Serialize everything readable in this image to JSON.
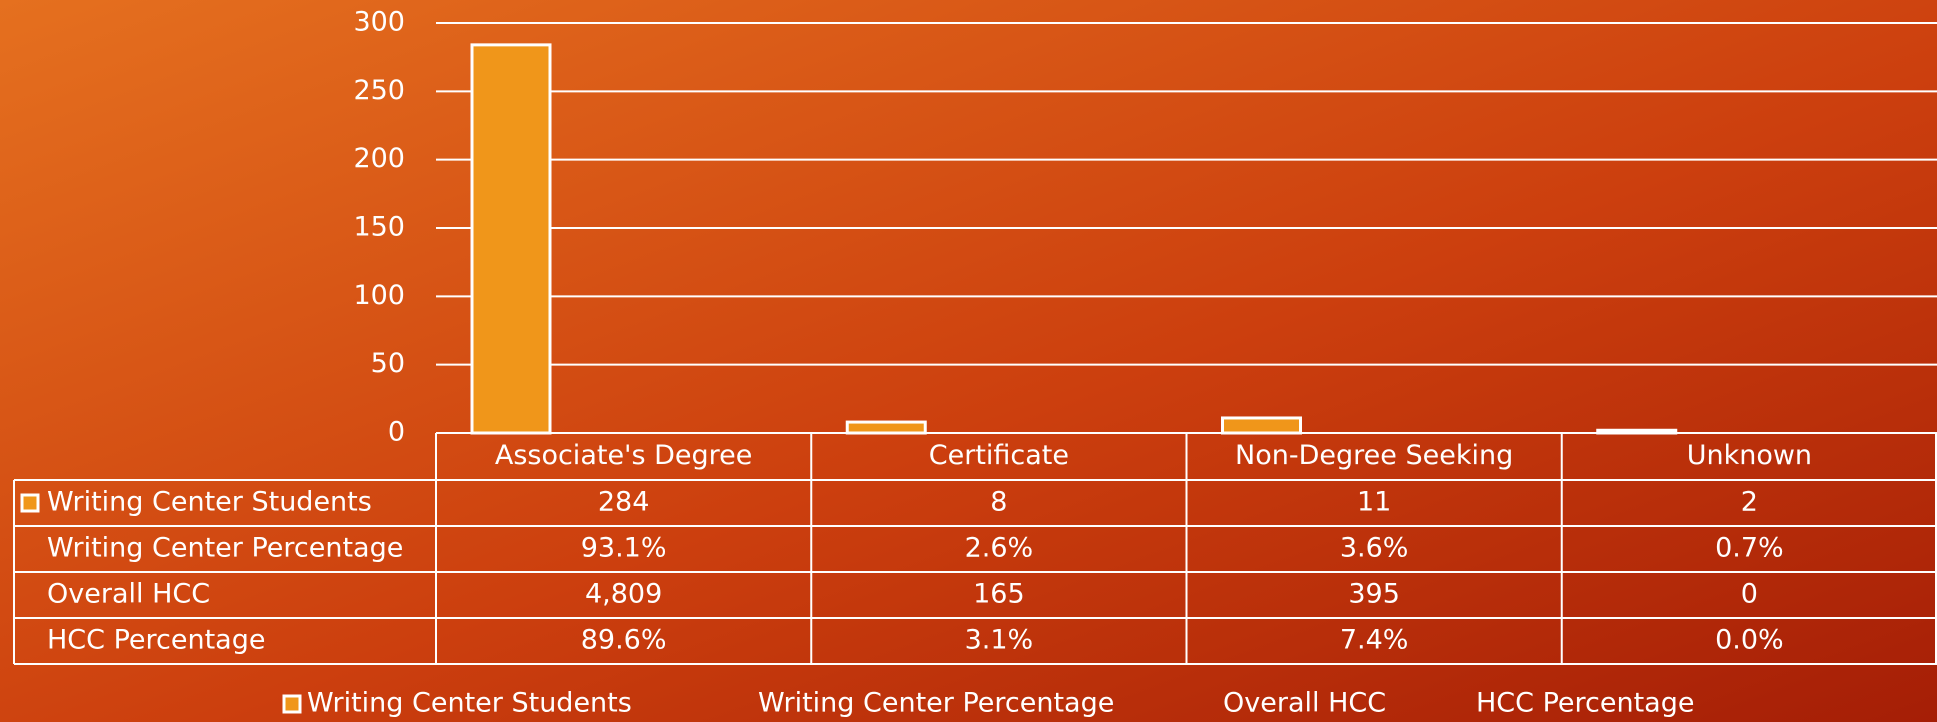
{
  "chart_data": {
    "type": "bar",
    "categories": [
      "Associate's Degree",
      "Certificate",
      "Non-Degree Seeking",
      "Unknown"
    ],
    "series": [
      {
        "name": "Writing Center Students",
        "color": "#f0961a",
        "values": [
          284,
          8,
          11,
          2
        ]
      },
      {
        "name": "Writing Center Percentage",
        "values": [
          93.1,
          2.6,
          3.6,
          0.7
        ],
        "value_labels": [
          "93.1%",
          "2.6%",
          "3.6%",
          "0.7%"
        ]
      },
      {
        "name": "Overall HCC",
        "values": [
          4809,
          165,
          395,
          0
        ],
        "value_labels": [
          "4,809",
          "165",
          "395",
          "0"
        ]
      },
      {
        "name": "HCC Percentage",
        "values": [
          89.6,
          3.1,
          7.4,
          0.0
        ],
        "value_labels": [
          "89.6%",
          "3.1%",
          "7.4%",
          "0.0%"
        ]
      }
    ],
    "ylim": [
      0,
      300
    ],
    "yticks": [
      0,
      50,
      100,
      150,
      200,
      250,
      300
    ],
    "grid": true
  }
}
